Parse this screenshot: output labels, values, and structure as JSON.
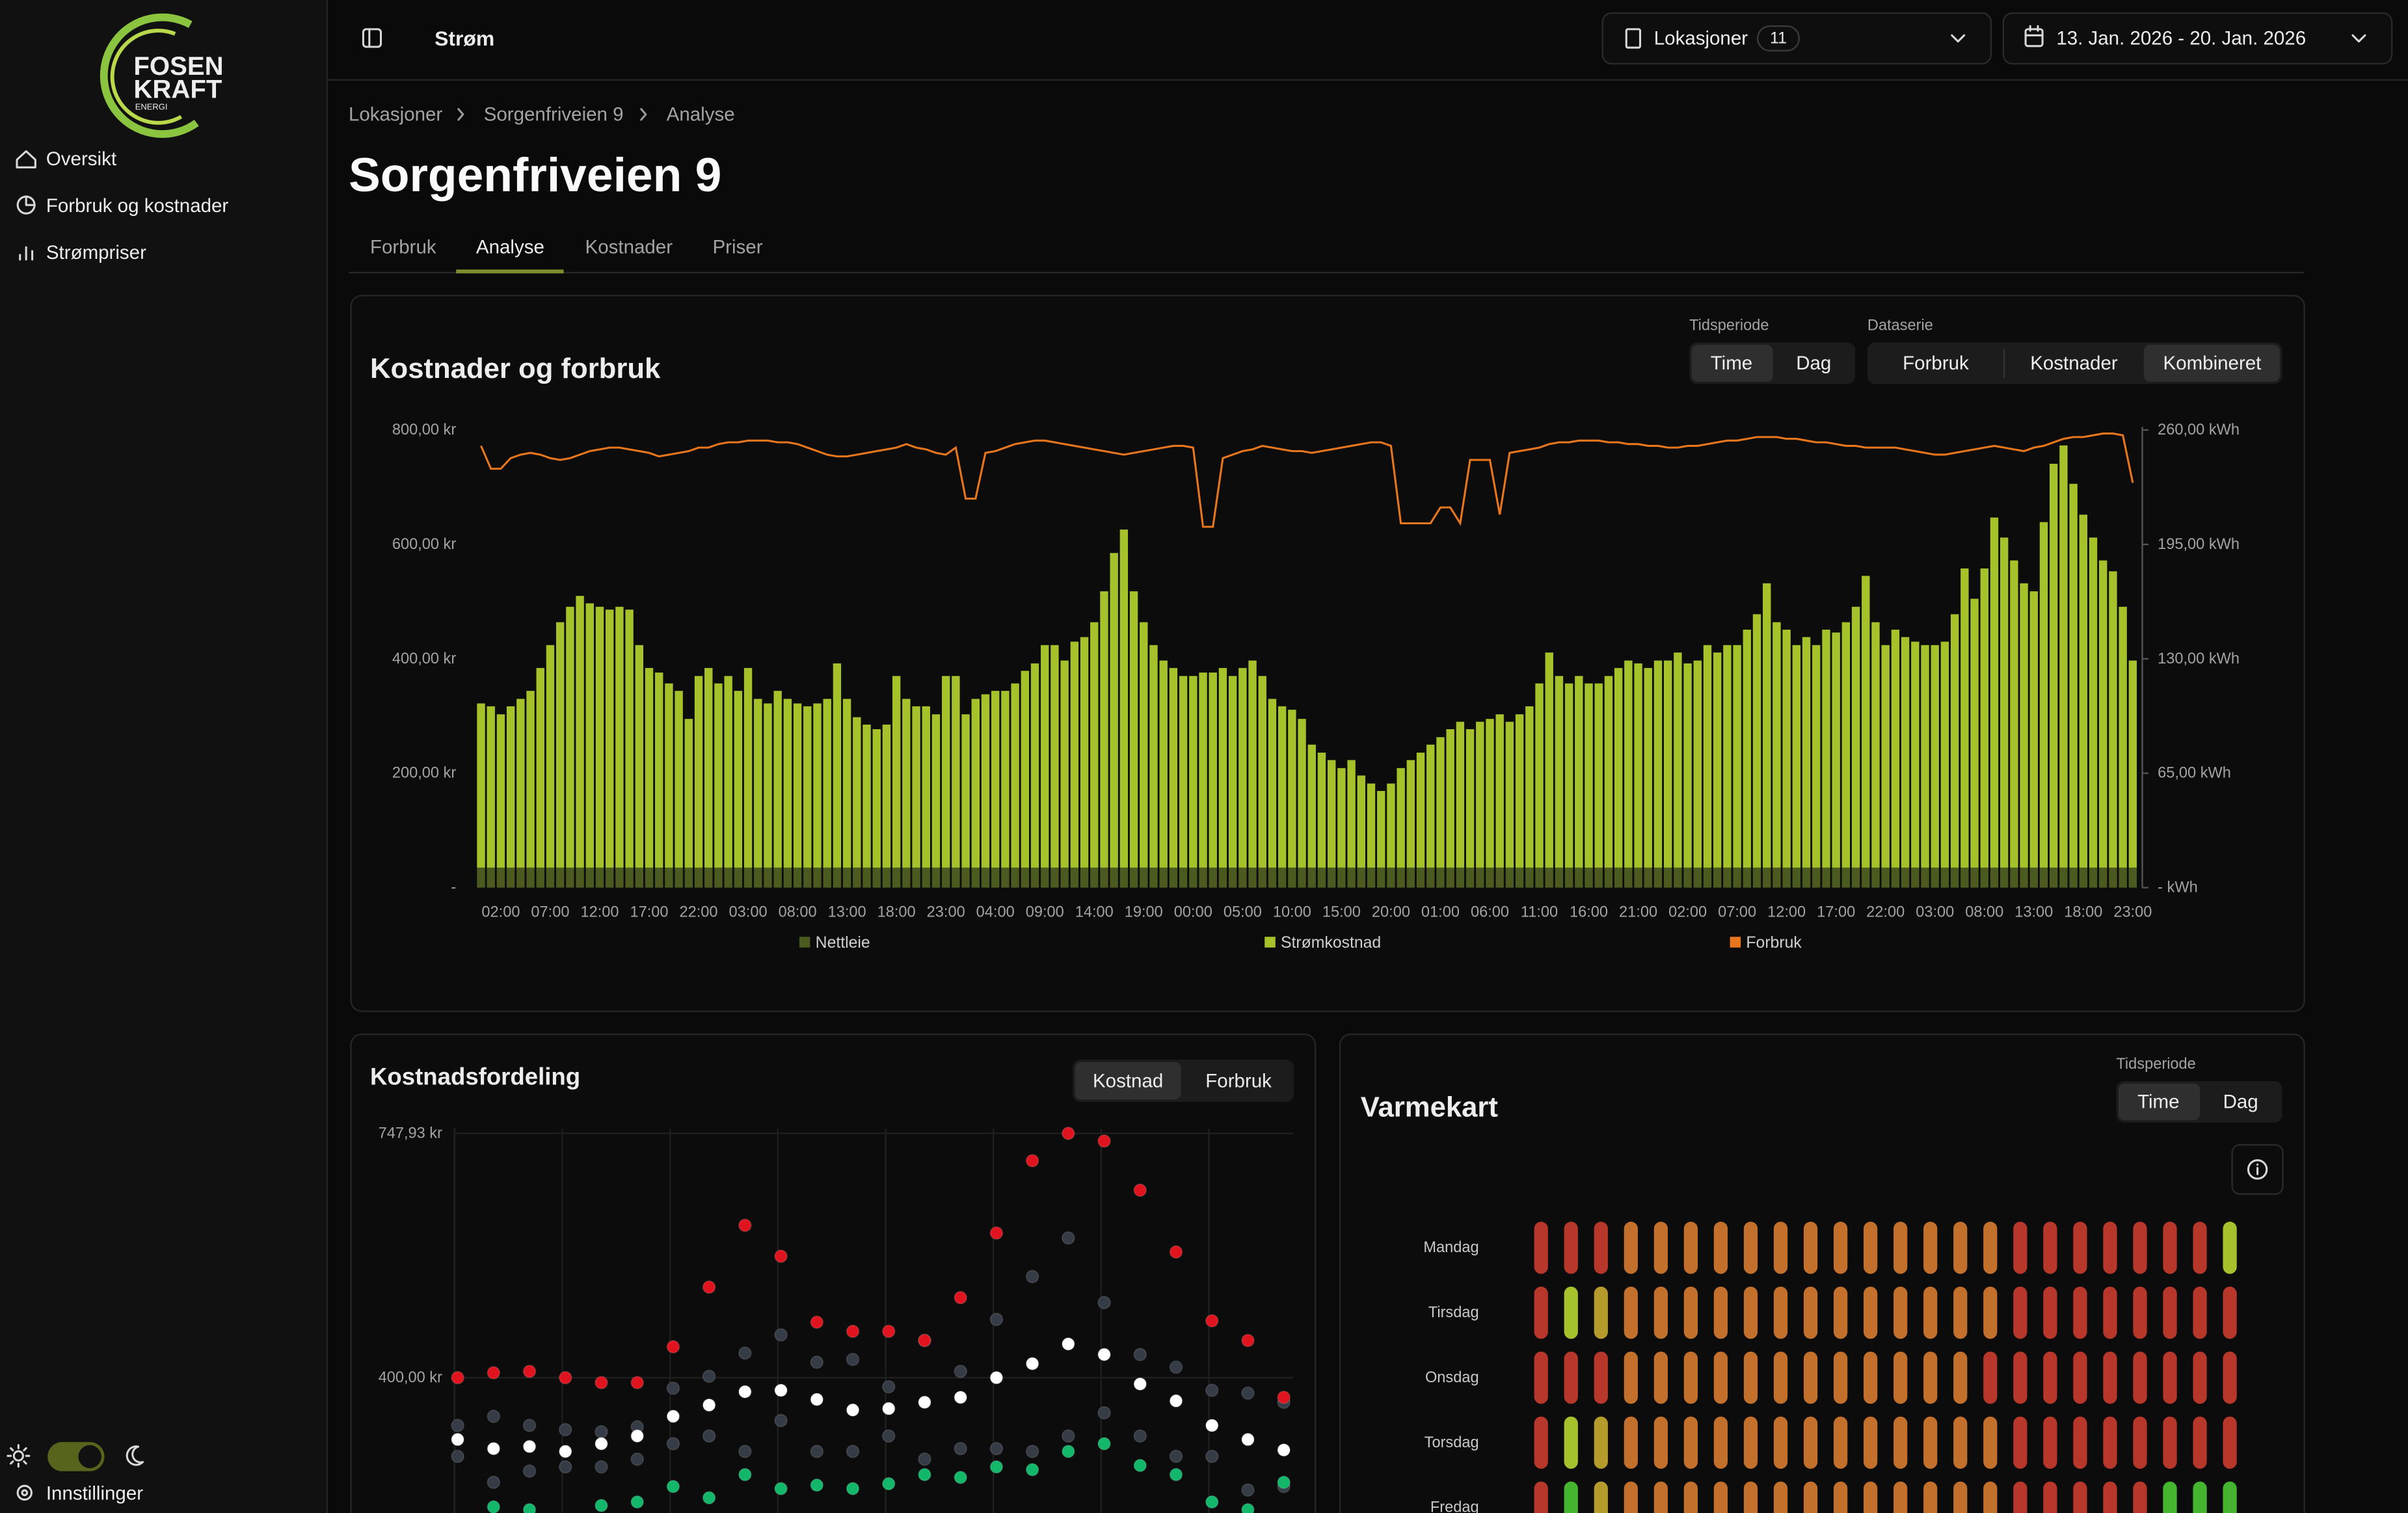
{
  "sidebar": {
    "logo": [
      "FOSEN",
      "KRAFT",
      "ENERGI"
    ],
    "nav": [
      "Oversikt",
      "Forbruk og kostnader",
      "Strømpriser"
    ],
    "settings": "Innstillinger"
  },
  "header": {
    "title": "Strøm",
    "locations": "Lokasjoner",
    "location_count": 11,
    "date_range": "13. Jan. 2026 - 20. Jan. 2026"
  },
  "breadcrumbs": [
    "Lokasjoner",
    "Sorgenfriveien 9",
    "Analyse"
  ],
  "page_title": "Sorgenfriveien 9",
  "tabs": [
    "Forbruk",
    "Analyse",
    "Kostnader",
    "Priser"
  ],
  "controls": {
    "period_label": "Tidsperiode",
    "period": [
      "Time",
      "Dag"
    ],
    "series_label": "Dataserie",
    "series": [
      "Forbruk",
      "Kostnader",
      "Kombineret"
    ],
    "distribution": [
      "Kostnad",
      "Forbruk"
    ],
    "heatmap_period_label": "Tidsperiode",
    "heatmap_period": [
      "Time",
      "Dag"
    ]
  },
  "chart_data": [
    {
      "type": "bar",
      "stacked": true,
      "title": "Kostnader og forbruk",
      "categories": [
        null,
        null,
        "02:00",
        null,
        null,
        null,
        null,
        "07:00",
        null,
        null,
        null,
        null,
        "12:00",
        null,
        null,
        null,
        null,
        "17:00",
        null,
        null,
        null,
        null,
        "22:00",
        null,
        null,
        null,
        null,
        "03:00",
        null,
        null,
        null,
        null,
        "08:00",
        null,
        null,
        null,
        null,
        "13:00",
        null,
        null,
        null,
        null,
        "18:00",
        null,
        null,
        null,
        null,
        "23:00",
        null,
        null,
        null,
        null,
        "04:00",
        null,
        null,
        null,
        null,
        "09:00",
        null,
        null,
        null,
        null,
        "14:00",
        null,
        null,
        null,
        null,
        "19:00",
        null,
        null,
        null,
        null,
        "00:00",
        null,
        null,
        null,
        null,
        "05:00",
        null,
        null,
        null,
        null,
        "10:00",
        null,
        null,
        null,
        null,
        "15:00",
        null,
        null,
        null,
        null,
        "20:00",
        null,
        null,
        null,
        null,
        "01:00",
        null,
        null,
        null,
        null,
        "06:00",
        null,
        null,
        null,
        null,
        "11:00",
        null,
        null,
        null,
        null,
        "16:00",
        null,
        null,
        null,
        null,
        "21:00",
        null,
        null,
        null,
        null,
        "02:00",
        null,
        null,
        null,
        null,
        "07:00",
        null,
        null,
        null,
        null,
        "12:00",
        null,
        null,
        null,
        null,
        "17:00",
        null,
        null,
        null,
        null,
        "22:00",
        null,
        null,
        null,
        null,
        "03:00",
        null,
        null,
        null,
        null,
        "08:00",
        null,
        null,
        null,
        null,
        "13:00",
        null,
        null,
        null,
        null,
        "18:00",
        null,
        null,
        null,
        null,
        "23:00"
      ],
      "series": [
        {
          "name": "Nettleie",
          "color": "#4b5a1f",
          "values": [
            35,
            35,
            35,
            35,
            35,
            35,
            35,
            35,
            35,
            35,
            35,
            35,
            35,
            35,
            35,
            35,
            35,
            35,
            35,
            35,
            35,
            35,
            35,
            35,
            35,
            35,
            35,
            35,
            35,
            35,
            35,
            35,
            35,
            35,
            35,
            35,
            35,
            35,
            35,
            35,
            35,
            35,
            35,
            35,
            35,
            35,
            35,
            35,
            35,
            35,
            35,
            35,
            35,
            35,
            35,
            35,
            35,
            35,
            35,
            35,
            35,
            35,
            35,
            35,
            35,
            35,
            35,
            35,
            35,
            35,
            35,
            35,
            35,
            35,
            35,
            35,
            35,
            35,
            35,
            35,
            35,
            35,
            35,
            35,
            35,
            35,
            35,
            35,
            35,
            35,
            35,
            35,
            35,
            35,
            35,
            35,
            35,
            35,
            35,
            35,
            35,
            35,
            35,
            35,
            35,
            35,
            35,
            35,
            35,
            35,
            35,
            35,
            35,
            35,
            35,
            35,
            35,
            35,
            35,
            35,
            35,
            35,
            35,
            35,
            35,
            35,
            35,
            35,
            35,
            35,
            35,
            35,
            35,
            35,
            35,
            35,
            35,
            35,
            35,
            35,
            35,
            35,
            35,
            35,
            35,
            35,
            35,
            35,
            35,
            35,
            35,
            35,
            35,
            35,
            35,
            35,
            35,
            35,
            35,
            35,
            35,
            35,
            35,
            35,
            35,
            35,
            35,
            35
          ]
        },
        {
          "name": "Strømkostnad",
          "color": "#a6c22b",
          "values": [
            287,
            282,
            268,
            282,
            295,
            309,
            349,
            389,
            429,
            456,
            475,
            462,
            456,
            451,
            456,
            451,
            389,
            349,
            341,
            322,
            309,
            260,
            335,
            349,
            322,
            335,
            309,
            349,
            295,
            287,
            309,
            295,
            287,
            282,
            287,
            295,
            357,
            295,
            263,
            250,
            242,
            250,
            335,
            295,
            282,
            282,
            268,
            335,
            335,
            268,
            295,
            303,
            309,
            309,
            322,
            344,
            357,
            389,
            389,
            362,
            395,
            403,
            429,
            483,
            550,
            591,
            483,
            429,
            389,
            362,
            349,
            335,
            335,
            341,
            341,
            349,
            335,
            349,
            362,
            335,
            295,
            282,
            276,
            260,
            215,
            201,
            188,
            174,
            188,
            161,
            147,
            134,
            147,
            174,
            188,
            201,
            215,
            228,
            242,
            255,
            242,
            255,
            260,
            268,
            255,
            268,
            282,
            322,
            376,
            335,
            322,
            335,
            322,
            322,
            335,
            349,
            362,
            357,
            349,
            362,
            362,
            376,
            357,
            362,
            389,
            376,
            389,
            389,
            416,
            443,
            497,
            429,
            416,
            389,
            403,
            389,
            416,
            411,
            429,
            456,
            510,
            429,
            389,
            416,
            403,
            395,
            389,
            389,
            395,
            443,
            523,
            470,
            523,
            612,
            577,
            537,
            497,
            483,
            604,
            706,
            738,
            671,
            617,
            577,
            537,
            518,
            456,
            362
          ]
        },
        {
          "name": "Forbruk",
          "type": "line",
          "axis": "y2",
          "color": "#e8761c",
          "values": [
            251,
            238,
            238,
            244,
            246,
            247,
            246,
            244,
            243,
            244,
            246,
            248,
            249,
            250,
            250,
            249,
            248,
            247,
            245,
            246,
            247,
            248,
            250,
            250,
            252,
            253,
            253,
            254,
            254,
            254,
            253,
            253,
            252,
            250,
            248,
            246,
            245,
            245,
            246,
            247,
            248,
            249,
            250,
            252,
            250,
            249,
            247,
            246,
            250,
            221,
            221,
            247,
            248,
            250,
            252,
            253,
            254,
            254,
            253,
            252,
            251,
            250,
            249,
            248,
            247,
            246,
            247,
            248,
            249,
            250,
            251,
            251,
            250,
            205,
            205,
            244,
            246,
            248,
            249,
            251,
            250,
            249,
            248,
            248,
            247,
            248,
            249,
            250,
            251,
            252,
            253,
            253,
            251,
            207,
            207,
            207,
            207,
            216,
            216,
            207,
            243,
            243,
            243,
            212,
            247,
            248,
            249,
            250,
            252,
            253,
            253,
            254,
            254,
            254,
            253,
            253,
            252,
            252,
            251,
            251,
            250,
            250,
            251,
            251,
            252,
            253,
            254,
            254,
            255,
            256,
            256,
            256,
            255,
            255,
            254,
            253,
            253,
            252,
            251,
            251,
            250,
            250,
            250,
            250,
            249,
            248,
            247,
            246,
            246,
            247,
            248,
            249,
            250,
            251,
            250,
            249,
            248,
            250,
            251,
            253,
            255,
            256,
            256,
            257,
            258,
            258,
            257,
            230
          ]
        }
      ],
      "ylim": [
        0,
        800
      ],
      "yticks": [
        {
          "value": 0,
          "label": "-"
        },
        {
          "value": 200,
          "label": "200,00 kr"
        },
        {
          "value": 400,
          "label": "400,00 kr"
        },
        {
          "value": 600,
          "label": "600,00 kr"
        },
        {
          "value": 800,
          "label": "800,00 kr"
        }
      ],
      "y2lim": [
        0,
        260
      ],
      "y2ticks": [
        {
          "value": 0,
          "label": "- kWh"
        },
        {
          "value": 65,
          "label": "65,00 kWh"
        },
        {
          "value": 130,
          "label": "130,00 kWh"
        },
        {
          "value": 195,
          "label": "195,00 kWh"
        },
        {
          "value": 260,
          "label": "260,00 kWh"
        }
      ],
      "grid": false,
      "legend": "bottom"
    },
    {
      "type": "scatter",
      "title": "Kostnadsfordeling",
      "categories": [
        null,
        null,
        null,
        null,
        null,
        null,
        null,
        null,
        null,
        null,
        null,
        null,
        null,
        null,
        null,
        null,
        null,
        null,
        null,
        null,
        null,
        null,
        null,
        null
      ],
      "series": [
        {
          "color": "#363c46",
          "values": [
            332,
            345,
            332,
            326,
            323,
            330,
            385,
            402,
            435,
            461,
            422,
            426,
            387,
            453,
            409,
            483,
            544,
            599,
            507,
            433,
            415,
            382,
            378,
            365
          ]
        },
        {
          "color": "#363c46",
          "values": [
            288,
            251,
            267,
            273,
            273,
            284,
            306,
            317,
            295,
            339,
            295,
            295,
            317,
            284,
            299,
            299,
            295,
            317,
            350,
            317,
            288,
            288,
            240,
            245
          ]
        },
        {
          "color": "#e0141e",
          "values": [
            400,
            407,
            409,
            400,
            393,
            393,
            444,
            529,
            617,
            573,
            479,
            466,
            466,
            453,
            514,
            606,
            709,
            747.93,
            737,
            667,
            579,
            481,
            453,
            372
          ]
        },
        {
          "color": "#ffffff",
          "values": [
            312,
            299,
            302,
            295,
            306,
            317,
            345,
            361,
            380,
            382,
            369,
            354,
            356,
            365,
            372,
            400,
            420,
            448,
            433,
            391,
            367,
            332,
            312,
            297
          ]
        },
        {
          "color": "#12b76a",
          "values": [
            null,
            216,
            212,
            null,
            218,
            223,
            245,
            229,
            262,
            242,
            247,
            242,
            249,
            262,
            258,
            273,
            269,
            295,
            306,
            275,
            262,
            223,
            212,
            251
          ]
        }
      ],
      "ylim": [
        0,
        747.93
      ],
      "yticks": [
        {
          "value": 400,
          "label": "400,00 kr"
        },
        {
          "value": 747.93,
          "label": "747,93 kr"
        }
      ],
      "grid": true
    }
  ],
  "heatmap": {
    "title": "Varmekart",
    "rows": [
      {
        "label": "Mandag",
        "colors": [
          "#b8372b",
          "#b8372b",
          "#b8372b",
          "#c2702c",
          "#c2702c",
          "#c2702c",
          "#c2702c",
          "#c2702c",
          "#c2702c",
          "#c2702c",
          "#c2702c",
          "#c2702c",
          "#c2702c",
          "#c2702c",
          "#c2702c",
          "#c2702c",
          "#b8372b",
          "#b8372b",
          "#b8372b",
          "#b8372b",
          "#b8372b",
          "#b8372b",
          "#b8372b",
          "#a5c22d"
        ]
      },
      {
        "label": "Tirsdag",
        "colors": [
          "#b8372b",
          "#a5c22d",
          "#b59a2c",
          "#c2702c",
          "#c2702c",
          "#c2702c",
          "#c2702c",
          "#c2702c",
          "#c2702c",
          "#c2702c",
          "#c2702c",
          "#c2702c",
          "#c2702c",
          "#c2702c",
          "#c2702c",
          "#c2702c",
          "#b8372b",
          "#b8372b",
          "#b8372b",
          "#b8372b",
          "#b8372b",
          "#b8372b",
          "#b8372b",
          "#b8372b"
        ]
      },
      {
        "label": "Onsdag",
        "colors": [
          "#b8372b",
          "#b8372b",
          "#b8372b",
          "#c2702c",
          "#c2702c",
          "#c2702c",
          "#c2702c",
          "#c2702c",
          "#c2702c",
          "#c2702c",
          "#c2702c",
          "#c2702c",
          "#c2702c",
          "#c2702c",
          "#c2702c",
          "#b8372b",
          "#b8372b",
          "#b8372b",
          "#b8372b",
          "#b8372b",
          "#b8372b",
          "#b8372b",
          "#b8372b",
          "#b8372b"
        ]
      },
      {
        "label": "Torsdag",
        "colors": [
          "#b8372b",
          "#a5c22d",
          "#b59a2c",
          "#c2702c",
          "#c2702c",
          "#c2702c",
          "#c2702c",
          "#c2702c",
          "#c2702c",
          "#c2702c",
          "#c2702c",
          "#c2702c",
          "#c2702c",
          "#c2702c",
          "#c2702c",
          "#c2702c",
          "#b8372b",
          "#b8372b",
          "#b8372b",
          "#b8372b",
          "#b8372b",
          "#b8372b",
          "#b8372b",
          "#b8372b"
        ]
      },
      {
        "label": "Fredag",
        "colors": [
          "#b8372b",
          "#45b52f",
          "#b59a2c",
          "#c2702c",
          "#c2702c",
          "#c2702c",
          "#c2702c",
          "#c2702c",
          "#c2702c",
          "#c2702c",
          "#c2702c",
          "#c2702c",
          "#c2702c",
          "#c2702c",
          "#c2702c",
          "#c2702c",
          "#b8372b",
          "#b8372b",
          "#b8372b",
          "#b8372b",
          "#b8372b",
          "#45b52f",
          "#45b52f",
          "#45b52f"
        ]
      }
    ]
  }
}
